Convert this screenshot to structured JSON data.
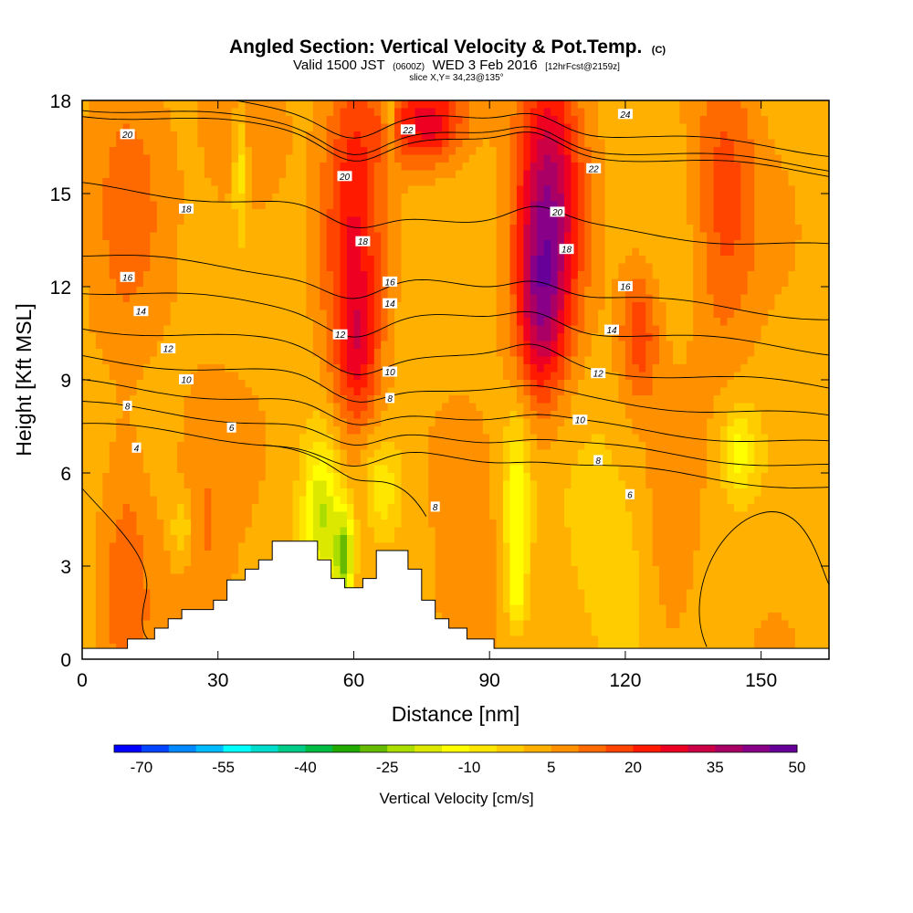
{
  "chart_data": {
    "type": "heatmap",
    "title": "Angled Section: Vertical Velocity & Pot.Temp.",
    "title_unit": "(C)",
    "subtitle": {
      "valid": "Valid 1500 JST",
      "utc": "(0600Z)",
      "date": "WED 3 Feb 2016",
      "forecast": "[12hrFcst@2159z]"
    },
    "slice_info": "slice X,Y= 34,23@135°",
    "xlabel": "Distance [nm]",
    "ylabel": "Height [Kft MSL]",
    "xlim": [
      0,
      165
    ],
    "ylim": [
      0,
      18
    ],
    "x_ticks": [
      "0",
      "30",
      "60",
      "90",
      "120",
      "150"
    ],
    "x_tick_values": [
      0,
      30,
      60,
      90,
      120,
      150
    ],
    "y_ticks": [
      "0",
      "3",
      "6",
      "9",
      "12",
      "15",
      "18"
    ],
    "y_tick_values": [
      0,
      3,
      6,
      9,
      12,
      15,
      18
    ],
    "colorbar": {
      "title": "Vertical Velocity [cm/s]",
      "min": -75,
      "step": 5,
      "labels": [
        "-70",
        "-55",
        "-40",
        "-25",
        "-10",
        "5",
        "20",
        "35",
        "50"
      ],
      "label_values": [
        -70,
        -55,
        -40,
        -25,
        -10,
        5,
        20,
        35,
        50
      ],
      "colors": [
        "#0000ff",
        "#0044ff",
        "#0088ff",
        "#00bbff",
        "#00ffff",
        "#00ddcc",
        "#00cc88",
        "#00bb44",
        "#22aa00",
        "#66bb00",
        "#aadd00",
        "#dde800",
        "#ffff00",
        "#ffe600",
        "#ffcc00",
        "#ffb000",
        "#ff9000",
        "#ff6a00",
        "#ff4400",
        "#ff1a00",
        "#ee0022",
        "#cc0044",
        "#aa0066",
        "#880088",
        "#660099"
      ]
    },
    "background_velocity": 3,
    "velocity_features": [
      {
        "x": 60,
        "y": 13.5,
        "sx": 4.5,
        "sy": 5.0,
        "v": 20
      },
      {
        "x": 61,
        "y": 10.0,
        "sx": 3.0,
        "sy": 1.5,
        "v": 12
      },
      {
        "x": 103,
        "y": 14.5,
        "sx": 5.0,
        "sy": 3.5,
        "v": 34
      },
      {
        "x": 101,
        "y": 11.0,
        "sx": 3.5,
        "sy": 2.0,
        "v": 18
      },
      {
        "x": 76,
        "y": 17.3,
        "sx": 6.0,
        "sy": 1.0,
        "v": 25
      },
      {
        "x": 142,
        "y": 15.0,
        "sx": 5.0,
        "sy": 3.5,
        "v": 14
      },
      {
        "x": 123,
        "y": 10.5,
        "sx": 3.0,
        "sy": 1.5,
        "v": 16
      },
      {
        "x": 36,
        "y": 16.5,
        "sx": 6.0,
        "sy": 2.0,
        "v": 8
      },
      {
        "x": 10,
        "y": 15.0,
        "sx": 6.0,
        "sy": 4.0,
        "v": 8
      },
      {
        "x": 10,
        "y": 3.0,
        "sx": 4.0,
        "sy": 3.0,
        "v": 10
      },
      {
        "x": 27,
        "y": 3.5,
        "sx": 5.0,
        "sy": 3.5,
        "v": 7
      },
      {
        "x": 85,
        "y": 1.5,
        "sx": 5.0,
        "sy": 2.5,
        "v": 8
      },
      {
        "x": 130,
        "y": 3.0,
        "sx": 4.0,
        "sy": 3.0,
        "v": 6
      },
      {
        "x": 35,
        "y": 16.0,
        "sx": 1.2,
        "sy": 1.5,
        "v": -15
      },
      {
        "x": 53,
        "y": 4.5,
        "sx": 3.0,
        "sy": 1.8,
        "v": -24
      },
      {
        "x": 58,
        "y": 3.2,
        "sx": 1.5,
        "sy": 1.2,
        "v": -30
      },
      {
        "x": 66,
        "y": 5.5,
        "sx": 3.0,
        "sy": 1.2,
        "v": -12
      },
      {
        "x": 96,
        "y": 5.0,
        "sx": 2.0,
        "sy": 2.0,
        "v": -18
      },
      {
        "x": 96,
        "y": 2.3,
        "sx": 1.5,
        "sy": 1.0,
        "v": -12
      },
      {
        "x": 145,
        "y": 6.7,
        "sx": 2.5,
        "sy": 1.0,
        "v": -15
      },
      {
        "x": 68,
        "y": 17.3,
        "sx": 1.0,
        "sy": 1.0,
        "v": -12
      },
      {
        "x": 22,
        "y": 4.2,
        "sx": 1.5,
        "sy": 0.8,
        "v": -12
      },
      {
        "x": 116,
        "y": 3.0,
        "sx": 7.0,
        "sy": 3.0,
        "v": -6
      }
    ],
    "terrain": [
      [
        0,
        0.35
      ],
      [
        10,
        0.35
      ],
      [
        10,
        0.65
      ],
      [
        16,
        0.65
      ],
      [
        16,
        1.0
      ],
      [
        19,
        1.0
      ],
      [
        19,
        1.3
      ],
      [
        22,
        1.3
      ],
      [
        22,
        1.6
      ],
      [
        29,
        1.6
      ],
      [
        29,
        1.9
      ],
      [
        32,
        1.9
      ],
      [
        32,
        2.55
      ],
      [
        36,
        2.55
      ],
      [
        36,
        2.9
      ],
      [
        39,
        2.9
      ],
      [
        39,
        3.2
      ],
      [
        42,
        3.2
      ],
      [
        42,
        3.8
      ],
      [
        52,
        3.8
      ],
      [
        52,
        3.2
      ],
      [
        55,
        3.2
      ],
      [
        55,
        2.6
      ],
      [
        58,
        2.6
      ],
      [
        58,
        2.3
      ],
      [
        62,
        2.3
      ],
      [
        62,
        2.6
      ],
      [
        65,
        2.6
      ],
      [
        65,
        3.5
      ],
      [
        72,
        3.5
      ],
      [
        72,
        2.9
      ],
      [
        75,
        2.9
      ],
      [
        75,
        1.9
      ],
      [
        78,
        1.9
      ],
      [
        78,
        1.3
      ],
      [
        81,
        1.3
      ],
      [
        81,
        1.0
      ],
      [
        85,
        1.0
      ],
      [
        85,
        0.65
      ],
      [
        91,
        0.65
      ],
      [
        91,
        0.35
      ],
      [
        165,
        0.35
      ]
    ],
    "theta_levels": [
      {
        "theta": 4,
        "y": 6.8,
        "label": "4",
        "label_x": 12
      },
      {
        "theta": 6,
        "y": 7.45,
        "label": "6",
        "label_x": 33
      },
      {
        "theta": 8,
        "y": 8.15,
        "label": "8",
        "label_x": 10
      },
      {
        "theta": 8,
        "y": 8.45,
        "label": "8",
        "label_x": 68
      },
      {
        "theta": 10,
        "y": 9.0,
        "label": "10",
        "label_x": 23
      },
      {
        "theta": 10,
        "y": 9.3,
        "label": "10",
        "label_x": 68
      },
      {
        "theta": 12,
        "y": 10.0,
        "label": "12",
        "label_x": 19
      },
      {
        "theta": 12,
        "y": 10.5,
        "label": "12",
        "label_x": 57
      },
      {
        "theta": 14,
        "y": 11.2,
        "label": "14",
        "label_x": 13
      },
      {
        "theta": 14,
        "y": 11.5,
        "label": "14",
        "label_x": 68
      },
      {
        "theta": 16,
        "y": 12.3,
        "label": "16",
        "label_x": 10
      },
      {
        "theta": 16,
        "y": 12.2,
        "label": "16",
        "label_x": 68
      },
      {
        "theta": 18,
        "y": 14.5,
        "label": "18",
        "label_x": 23
      },
      {
        "theta": 18,
        "y": 13.5,
        "label": "18",
        "label_x": 62
      },
      {
        "theta": 20,
        "y": 16.9,
        "label": "20",
        "label_x": 10
      },
      {
        "theta": 20,
        "y": 15.6,
        "label": "20",
        "label_x": 58
      },
      {
        "theta": 22,
        "y": 17.1,
        "label": "22",
        "label_x": 72
      },
      {
        "theta": 24,
        "y": 17.6,
        "label": "24",
        "label_x": 120
      }
    ],
    "right_labels": [
      {
        "label": "6",
        "x": 121,
        "y": 5.3
      },
      {
        "label": "8",
        "x": 114,
        "y": 6.4
      },
      {
        "label": "10",
        "x": 110,
        "y": 7.7
      },
      {
        "label": "12",
        "x": 114,
        "y": 9.2
      },
      {
        "label": "14",
        "x": 117,
        "y": 10.6
      },
      {
        "label": "16",
        "x": 120,
        "y": 12.0
      },
      {
        "label": "18",
        "x": 107,
        "y": 13.2
      },
      {
        "label": "20",
        "x": 105,
        "y": 14.4
      },
      {
        "label": "22",
        "x": 113,
        "y": 15.8
      },
      {
        "label": "8",
        "x": 78,
        "y": 4.9
      }
    ]
  }
}
